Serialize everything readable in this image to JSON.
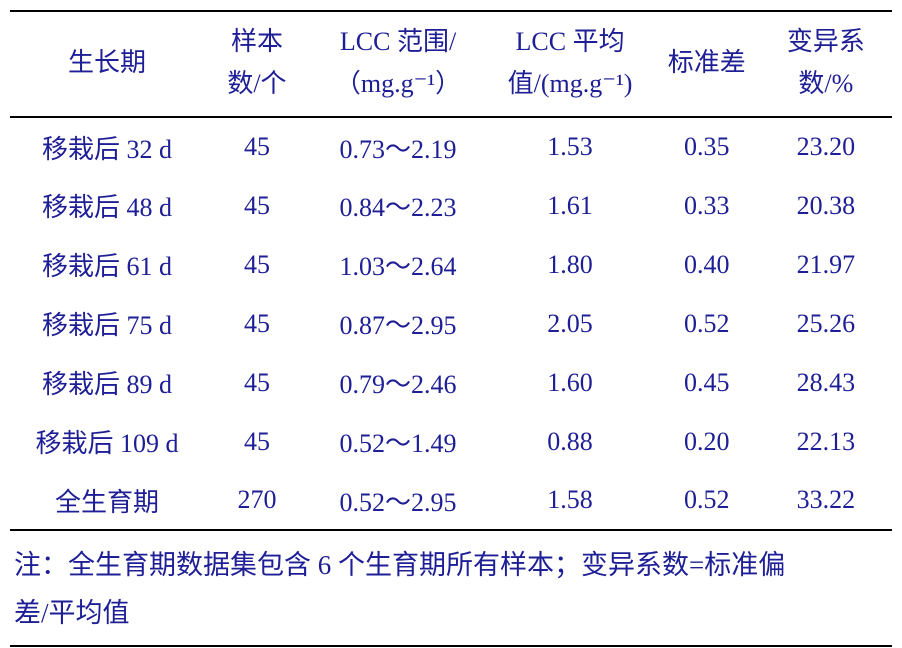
{
  "colors": {
    "text": "#1e1e96",
    "rule": "#000000",
    "background": "#ffffff"
  },
  "table": {
    "header": {
      "growth_stage": "生长期",
      "sample_line1": "样本",
      "sample_line2": "数/个",
      "lcc_range_line1": "LCC 范围/",
      "lcc_range_line2": "（mg.g⁻¹）",
      "lcc_mean_line1": "LCC 平均",
      "lcc_mean_line2": "值/(mg.g⁻¹)",
      "std_dev": "标准差",
      "cv_line1": "变异系",
      "cv_line2": "数/%"
    },
    "rows": [
      {
        "cells": [
          "移栽后 32 d",
          "45",
          "0.73～2.19",
          "1.53",
          "0.35",
          "23.20"
        ]
      },
      {
        "cells": [
          "移栽后 48 d",
          "45",
          "0.84～2.23",
          "1.61",
          "0.33",
          "20.38"
        ]
      },
      {
        "cells": [
          "移栽后 61 d",
          "45",
          "1.03～2.64",
          "1.80",
          "0.40",
          "21.97"
        ]
      },
      {
        "cells": [
          "移栽后 75 d",
          "45",
          "0.87～2.95",
          "2.05",
          "0.52",
          "25.26"
        ]
      },
      {
        "cells": [
          "移栽后 89 d",
          "45",
          "0.79～2.46",
          "1.60",
          "0.45",
          "28.43"
        ]
      },
      {
        "cells": [
          "移栽后 109 d",
          "45",
          "0.52～1.49",
          "0.88",
          "0.20",
          "22.13"
        ]
      },
      {
        "cells": [
          "全生育期",
          "270",
          "0.52～2.95",
          "1.58",
          "0.52",
          "33.22"
        ]
      }
    ],
    "note_line1": "注：全生育期数据集包含 6 个生育期所有样本；变异系数=标准偏",
    "note_line2": "差/平均值"
  }
}
